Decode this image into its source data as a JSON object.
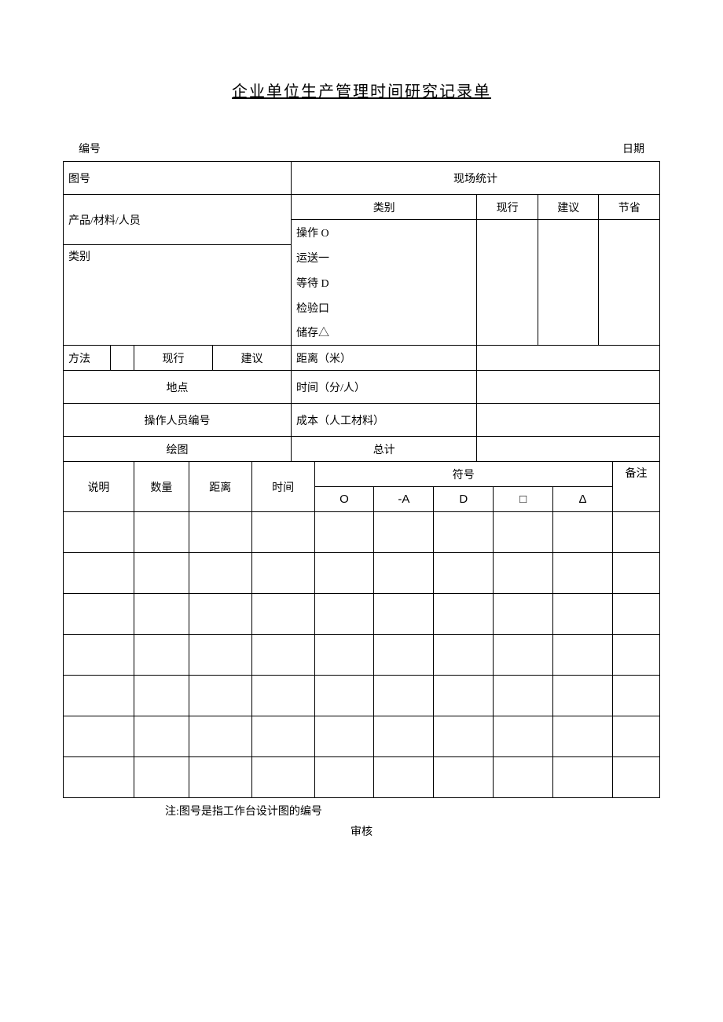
{
  "title": "企业单位生产管理时间研究记录单",
  "header": {
    "left": "编号",
    "right": "日期"
  },
  "leftBlock": {
    "drawingNo": "图号",
    "product": "产品/材料/人员",
    "category": "类别",
    "method": "方法",
    "current": "现行",
    "suggest": "建议",
    "place": "地点",
    "operator": "操作人员编号",
    "drawing": "绘图"
  },
  "rightBlock": {
    "fieldStat": "现场统计",
    "typeHeader": "类别",
    "cols": {
      "current": "现行",
      "suggest": "建议",
      "save": "节省"
    },
    "rows": {
      "op": "操作 O",
      "trans": "运送一",
      "wait": "等待 D",
      "inspect": "检验口",
      "store": "储存△"
    },
    "distance": "距离（米）",
    "time": "时间（分/人）",
    "cost": "成本（人工材料）",
    "total": "总计"
  },
  "detailsHeader": {
    "desc": "说明",
    "qty": "数量",
    "dist": "距离",
    "time": "时间",
    "symbol": "符号",
    "remark": "备注",
    "symbols": {
      "o": "O",
      "a": "-A",
      "d": "D",
      "sq": "□",
      "tri": "Δ"
    }
  },
  "detailRows": 7,
  "footer": {
    "note": "注:图号是指工作台设计图的编号",
    "audit": "审核"
  },
  "styling": {
    "pageWidth": 920,
    "pageHeight": 1301,
    "titleFontSize": 20,
    "bodyFontSize": 14,
    "borderColor": "#000000",
    "backgroundColor": "#ffffff",
    "textColor": "#000000"
  }
}
